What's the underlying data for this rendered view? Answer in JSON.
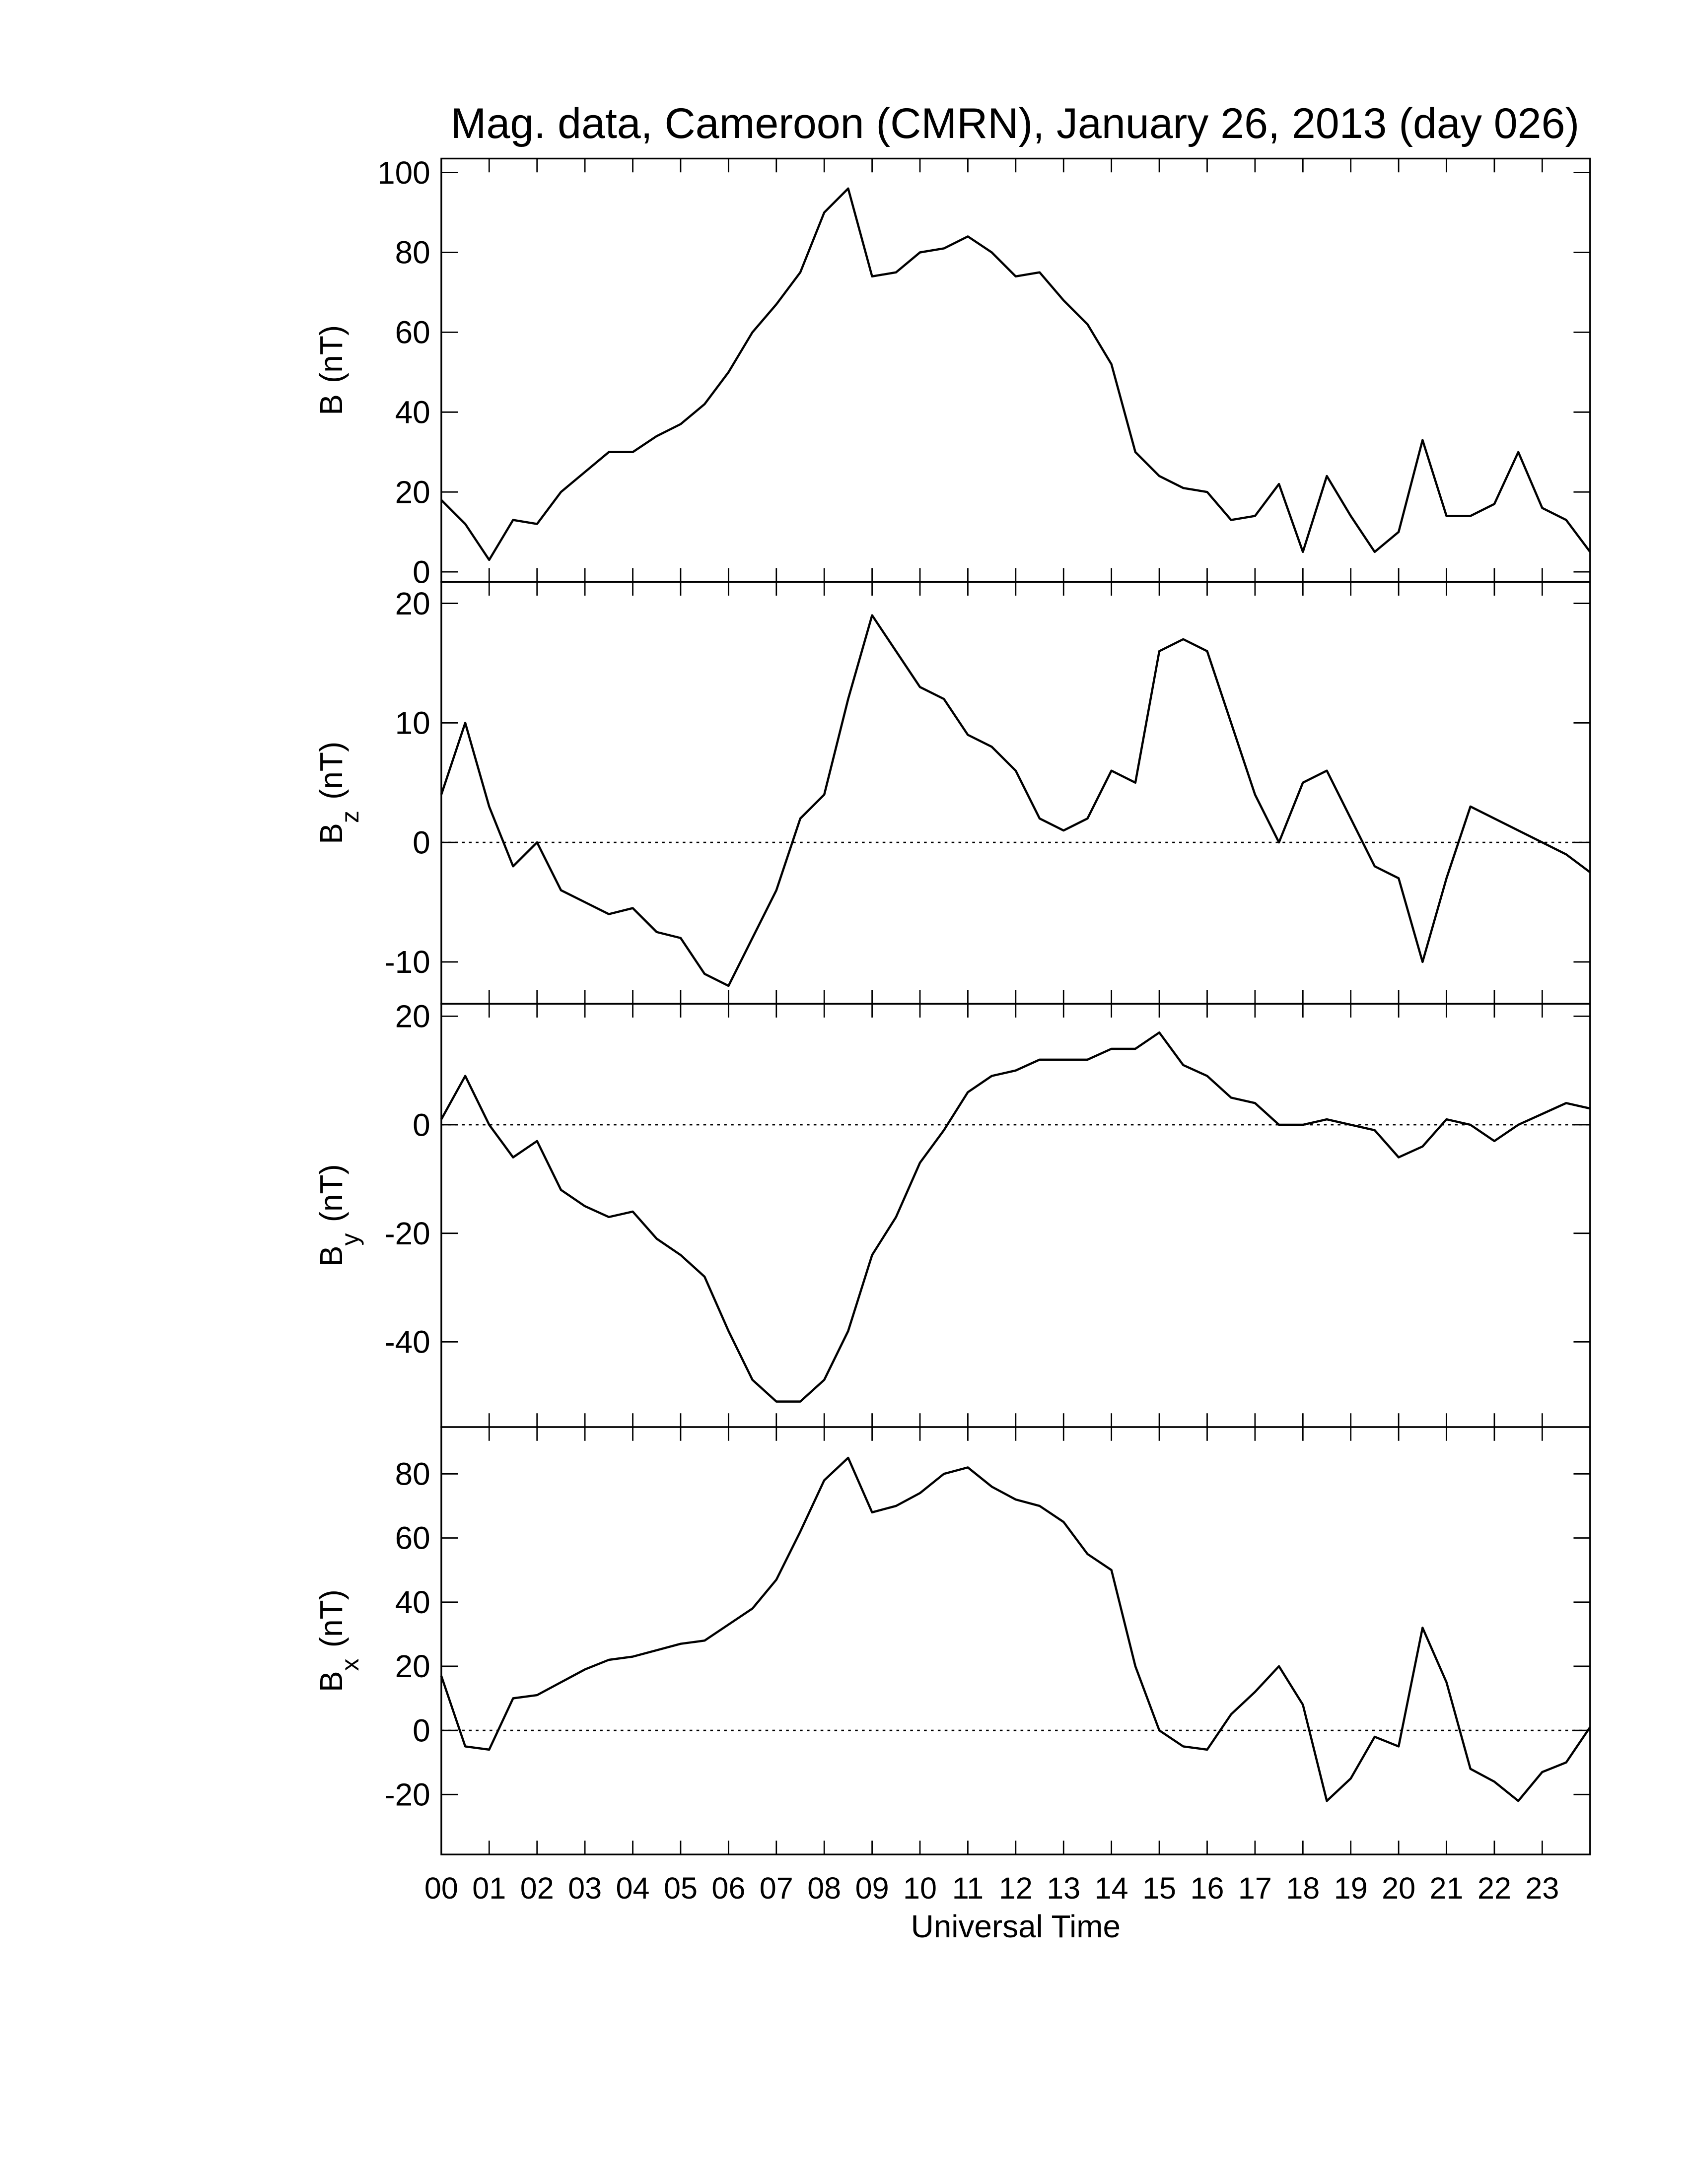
{
  "chart_data": [
    {
      "type": "line",
      "title": "Mag. data, Cameroon (CMRN), January 26, 2013 (day 026)",
      "y_label": "B",
      "y_unit": "(nT)",
      "color": "#000000",
      "x": [
        0,
        0.5,
        1,
        1.5,
        2,
        2.5,
        3,
        3.5,
        4,
        4.5,
        5,
        5.5,
        6,
        6.5,
        7,
        7.5,
        8,
        8.5,
        9,
        9.5,
        10,
        10.5,
        11,
        11.5,
        12,
        12.5,
        13,
        13.5,
        14,
        14.5,
        15,
        15.5,
        16,
        16.5,
        17,
        17.5,
        18,
        18.5,
        19,
        19.5,
        20,
        20.5,
        21,
        21.5,
        22,
        22.5,
        23,
        23.5,
        24
      ],
      "values": [
        18,
        12,
        3,
        13,
        12,
        20,
        25,
        30,
        30,
        34,
        37,
        42,
        50,
        60,
        67,
        75,
        90,
        96,
        74,
        75,
        80,
        81,
        84,
        80,
        74,
        75,
        68,
        62,
        52,
        30,
        24,
        21,
        20,
        13,
        14,
        22,
        5,
        24,
        14,
        5,
        10,
        33,
        14,
        14,
        17,
        30,
        16,
        13,
        5
      ],
      "xlim": [
        0,
        24
      ],
      "ylim": [
        -2.5,
        103.5
      ],
      "yticks": [
        0,
        20,
        40,
        60,
        80,
        100
      ]
    },
    {
      "type": "line",
      "y_label": "B",
      "y_label_subscript": "z",
      "y_unit": "(nT)",
      "color": "#000000",
      "zero_line": true,
      "x": [
        0,
        0.5,
        1,
        1.5,
        2,
        2.5,
        3,
        3.5,
        4,
        4.5,
        5,
        5.5,
        6,
        6.5,
        7,
        7.5,
        8,
        8.5,
        9,
        9.5,
        10,
        10.5,
        11,
        11.5,
        12,
        12.5,
        13,
        13.5,
        14,
        14.5,
        15,
        15.5,
        16,
        16.5,
        17,
        17.5,
        18,
        18.5,
        19,
        19.5,
        20,
        20.5,
        21,
        21.5,
        22,
        22.5,
        23,
        23.5,
        24
      ],
      "values": [
        4,
        10,
        3,
        -2,
        0,
        -4,
        -5,
        -6,
        -5.5,
        -7.5,
        -8,
        -11,
        -12,
        -8,
        -4,
        2,
        4,
        12,
        19,
        16,
        13,
        12,
        9,
        8,
        6,
        2,
        1,
        2,
        6,
        5,
        16,
        17,
        16,
        10,
        4,
        0,
        5,
        6,
        2,
        -2,
        -3,
        -10,
        -3,
        3,
        2,
        1,
        0,
        -1,
        -2.5
      ],
      "xlim": [
        0,
        24
      ],
      "ylim": [
        -13.5,
        21.8
      ],
      "yticks": [
        -10,
        0,
        10,
        20
      ]
    },
    {
      "type": "line",
      "y_label": "B",
      "y_label_subscript": "y",
      "y_unit": "(nT)",
      "color": "#000000",
      "zero_line": true,
      "x": [
        0,
        0.5,
        1,
        1.5,
        2,
        2.5,
        3,
        3.5,
        4,
        4.5,
        5,
        5.5,
        6,
        6.5,
        7,
        7.5,
        8,
        8.5,
        9,
        9.5,
        10,
        10.5,
        11,
        11.5,
        12,
        12.5,
        13,
        13.5,
        14,
        14.5,
        15,
        15.5,
        16,
        16.5,
        17,
        17.5,
        18,
        18.5,
        19,
        19.5,
        20,
        20.5,
        21,
        21.5,
        22,
        22.5,
        23,
        23.5,
        24
      ],
      "values": [
        1,
        9,
        0,
        -6,
        -3,
        -12,
        -15,
        -17,
        -16,
        -21,
        -24,
        -28,
        -38,
        -47,
        -51,
        -51,
        -47,
        -38,
        -24,
        -17,
        -7,
        -1,
        6,
        9,
        10,
        12,
        12,
        12,
        14,
        14,
        17,
        11,
        9,
        5,
        4,
        0,
        0,
        1,
        0,
        -1,
        -6,
        -4,
        1,
        0,
        -3,
        0,
        2,
        4,
        3
      ],
      "xlim": [
        0,
        24
      ],
      "ylim": [
        -55.7,
        22.3
      ],
      "yticks": [
        -40,
        -20,
        0,
        20
      ]
    },
    {
      "type": "line",
      "y_label": "B",
      "y_label_subscript": "x",
      "y_unit": "(nT)",
      "x_label": "Universal Time",
      "color": "#000000",
      "zero_line": true,
      "x": [
        0,
        0.5,
        1,
        1.5,
        2,
        2.5,
        3,
        3.5,
        4,
        4.5,
        5,
        5.5,
        6,
        6.5,
        7,
        7.5,
        8,
        8.5,
        9,
        9.5,
        10,
        10.5,
        11,
        11.5,
        12,
        12.5,
        13,
        13.5,
        14,
        14.5,
        15,
        15.5,
        16,
        16.5,
        17,
        17.5,
        18,
        18.5,
        19,
        19.5,
        20,
        20.5,
        21,
        21.5,
        22,
        22.5,
        23,
        23.5,
        24
      ],
      "values": [
        17,
        -5,
        -6,
        10,
        11,
        15,
        19,
        22,
        23,
        25,
        27,
        28,
        33,
        38,
        47,
        62,
        78,
        85,
        68,
        70,
        74,
        80,
        82,
        76,
        72,
        70,
        65,
        55,
        50,
        20,
        0,
        -5,
        -6,
        5,
        12,
        20,
        8,
        -22,
        -15,
        -2,
        -5,
        32,
        15,
        -12,
        -16,
        -22,
        -13,
        -10,
        1
      ],
      "xlim": [
        0,
        24
      ],
      "ylim": [
        -38.7,
        94.6
      ],
      "yticks": [
        -20,
        0,
        20,
        40,
        60,
        80
      ],
      "xticks": [
        {
          "value": 0,
          "label": "00"
        },
        {
          "value": 1,
          "label": "01"
        },
        {
          "value": 2,
          "label": "02"
        },
        {
          "value": 3,
          "label": "03"
        },
        {
          "value": 4,
          "label": "04"
        },
        {
          "value": 5,
          "label": "05"
        },
        {
          "value": 6,
          "label": "06"
        },
        {
          "value": 7,
          "label": "07"
        },
        {
          "value": 8,
          "label": "08"
        },
        {
          "value": 9,
          "label": "09"
        },
        {
          "value": 10,
          "label": "10"
        },
        {
          "value": 11,
          "label": "11"
        },
        {
          "value": 12,
          "label": "12"
        },
        {
          "value": 13,
          "label": "13"
        },
        {
          "value": 14,
          "label": "14"
        },
        {
          "value": 15,
          "label": "15"
        },
        {
          "value": 16,
          "label": "16"
        },
        {
          "value": 17,
          "label": "17"
        },
        {
          "value": 18,
          "label": "18"
        },
        {
          "value": 19,
          "label": "19"
        },
        {
          "value": 20,
          "label": "20"
        },
        {
          "value": 21,
          "label": "21"
        },
        {
          "value": 22,
          "label": "22"
        },
        {
          "value": 23,
          "label": "23"
        }
      ]
    }
  ]
}
